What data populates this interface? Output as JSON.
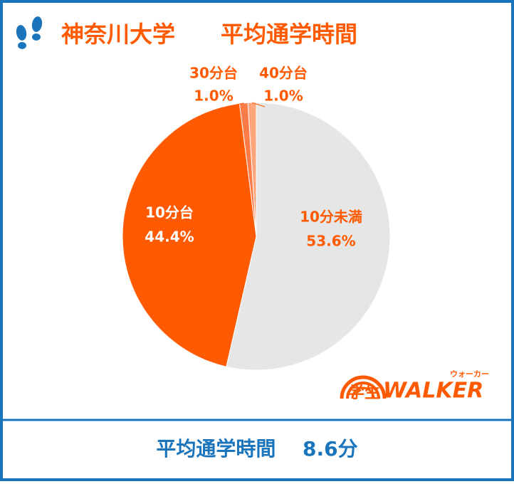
{
  "chart_data": {
    "type": "pie",
    "title": "神奈川大学　　平均通学時間",
    "categories": [
      "10分未満",
      "10分台",
      "30分台",
      "40分台"
    ],
    "values": [
      53.6,
      44.4,
      1.0,
      1.0
    ],
    "value_labels": [
      "53.6%",
      "44.4%",
      "1.0%",
      "1.0%"
    ],
    "colors": [
      "#e6e6e6",
      "#ff5a00",
      "#ff7b47",
      "#ffa57c"
    ]
  },
  "footer": "平均通学時間　 8.6分",
  "logo": {
    "kanji": "学生",
    "brand": "WALKER",
    "ruby": "ウォーカー"
  }
}
